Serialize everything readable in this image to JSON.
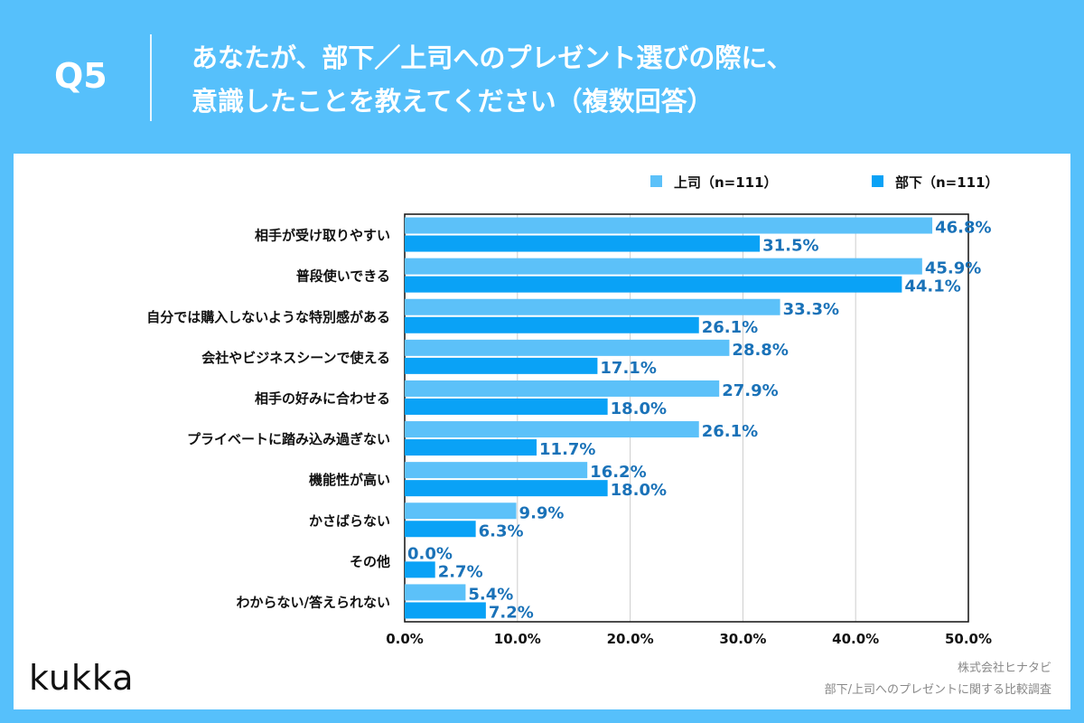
{
  "header": {
    "q_label": "Q5",
    "title_line1": "あなたが、部下／上司へのプレゼント選びの際に、",
    "title_line2": "意識したことを教えてください（複数回答）"
  },
  "footer": {
    "logo": "kukka",
    "credit1": "株式会社ヒナタビ",
    "credit2": "部下/上司へのプレゼントに関する比較調査"
  },
  "colors": {
    "background": "#56c0fb",
    "series1": "#5cc1f9",
    "series2": "#0aa2f6",
    "data_label": "#1a72b8"
  },
  "chart_data": {
    "type": "bar",
    "orientation": "horizontal",
    "categories": [
      "相手が受け取りやすい",
      "普段使いできる",
      "自分では購入しないような特別感がある",
      "会社やビジネスシーンで使える",
      "相手の好みに合わせる",
      "プライベートに踏み込み過ぎない",
      "機能性が高い",
      "かさばらない",
      "その他",
      "わからない/答えられない"
    ],
    "series": [
      {
        "name": "上司（n=111）",
        "values": [
          46.8,
          45.9,
          33.3,
          28.8,
          27.9,
          26.1,
          16.2,
          9.9,
          0.0,
          5.4
        ]
      },
      {
        "name": "部下（n=111）",
        "values": [
          31.5,
          44.1,
          26.1,
          17.1,
          18.0,
          11.7,
          18.0,
          6.3,
          2.7,
          7.2
        ]
      }
    ],
    "xlim": [
      0,
      50
    ],
    "xticks": [
      "0.0%",
      "10.0%",
      "20.0%",
      "30.0%",
      "40.0%",
      "50.0%"
    ],
    "grid": true,
    "legend": "top-right"
  }
}
